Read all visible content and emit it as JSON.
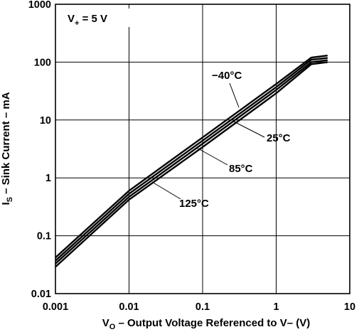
{
  "chart_data": {
    "type": "line",
    "xscale": "log",
    "yscale": "log",
    "xlim": [
      0.001,
      10
    ],
    "ylim": [
      0.01,
      1000
    ],
    "xticks": [
      "0.001",
      "0.01",
      "0.1",
      "1",
      "10"
    ],
    "yticks": [
      "0.01",
      "0.1",
      "1",
      "10",
      "100",
      "1000"
    ],
    "xlabel": {
      "main": "V",
      "sub": "O",
      "rest": " – Output Voltage Referenced to V– (V)"
    },
    "ylabel": {
      "main": "I",
      "sub": "S",
      "rest": " – Sink Current – mA"
    },
    "condition": {
      "main": "V",
      "sub": "+",
      "rest": " = 5 V"
    },
    "grid": true,
    "series": [
      {
        "name": "−40°C",
        "points": [
          [
            0.001,
            0.042
          ],
          [
            0.01,
            0.6
          ],
          [
            0.1,
            5.0
          ],
          [
            1,
            42
          ],
          [
            3,
            120
          ],
          [
            5,
            130
          ]
        ]
      },
      {
        "name": "25°C",
        "points": [
          [
            0.001,
            0.037
          ],
          [
            0.01,
            0.53
          ],
          [
            0.1,
            4.4
          ],
          [
            1,
            37
          ],
          [
            3,
            110
          ],
          [
            5,
            118
          ]
        ]
      },
      {
        "name": "85°C",
        "points": [
          [
            0.001,
            0.033
          ],
          [
            0.01,
            0.47
          ],
          [
            0.1,
            3.9
          ],
          [
            1,
            33
          ],
          [
            3,
            100
          ],
          [
            5,
            108
          ]
        ]
      },
      {
        "name": "125°C",
        "points": [
          [
            0.001,
            0.029
          ],
          [
            0.01,
            0.42
          ],
          [
            0.1,
            3.4
          ],
          [
            1,
            29
          ],
          [
            3,
            92
          ],
          [
            5,
            100
          ]
        ]
      }
    ],
    "annotations": [
      {
        "text": "−40°C",
        "series": "−40°C"
      },
      {
        "text": "25°C",
        "series": "25°C"
      },
      {
        "text": "85°C",
        "series": "85°C"
      },
      {
        "text": "125°C",
        "series": "125°C"
      }
    ]
  }
}
